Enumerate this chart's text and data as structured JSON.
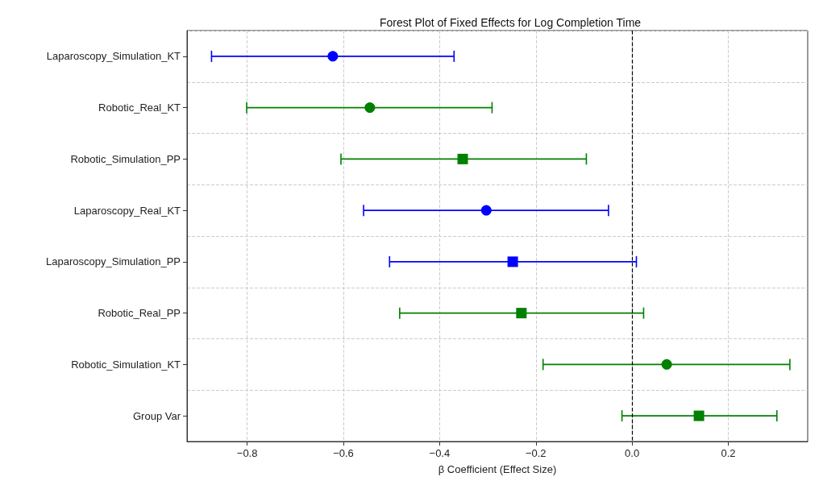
{
  "chart_data": {
    "type": "scatter",
    "orientation": "horizontal",
    "title": "Forest Plot of Fixed Effects for Log Completion Time",
    "xlabel": "β Coefficient (Effect Size)",
    "categories": [
      "Laparoscopy_Simulation_KT",
      "Robotic_Real_KT",
      "Robotic_Simulation_PP",
      "Laparoscopy_Real_KT",
      "Laparoscopy_Simulation_PP",
      "Robotic_Real_PP",
      "Robotic_Simulation_KT",
      "Group Var"
    ],
    "series": [
      {
        "color": "#0000ff",
        "marker": "circle",
        "values": [
          -0.622,
          null,
          null,
          -0.303,
          null,
          null,
          null,
          null
        ],
        "errors": [
          [
            -0.874,
            -0.37
          ],
          null,
          null,
          [
            -0.558,
            -0.049
          ],
          null,
          null,
          null,
          null
        ]
      },
      {
        "color": "#0000ff",
        "marker": "square",
        "values": [
          null,
          null,
          null,
          null,
          -0.248,
          null,
          null,
          null
        ],
        "errors": [
          null,
          null,
          null,
          null,
          [
            -0.504,
            0.009
          ],
          null,
          null,
          null
        ]
      },
      {
        "color": "#008000",
        "marker": "circle",
        "values": [
          null,
          -0.545,
          null,
          null,
          null,
          null,
          0.072,
          null
        ],
        "errors": [
          null,
          [
            -0.801,
            -0.291
          ],
          null,
          null,
          null,
          null,
          [
            -0.185,
            0.328
          ],
          null
        ]
      },
      {
        "color": "#008000",
        "marker": "square",
        "values": [
          null,
          null,
          -0.352,
          null,
          null,
          -0.23,
          null,
          0.139
        ],
        "errors": [
          null,
          null,
          [
            -0.605,
            -0.095
          ],
          null,
          null,
          [
            -0.483,
            0.024
          ],
          null,
          [
            -0.021,
            0.301
          ]
        ]
      }
    ],
    "xlim": [
      -0.925,
      0.365
    ],
    "xticks": [
      {
        "value": -0.8,
        "label": "−0.8"
      },
      {
        "value": -0.6,
        "label": "−0.6"
      },
      {
        "value": -0.4,
        "label": "−0.4"
      },
      {
        "value": -0.2,
        "label": "−0.2"
      },
      {
        "value": 0,
        "label": "0.0"
      },
      {
        "value": 0.2,
        "label": "0.2"
      }
    ],
    "ref_lines": [
      {
        "axis": "x",
        "value": 0,
        "color": "#000000",
        "line_style": "dashed"
      }
    ],
    "grid": true
  }
}
